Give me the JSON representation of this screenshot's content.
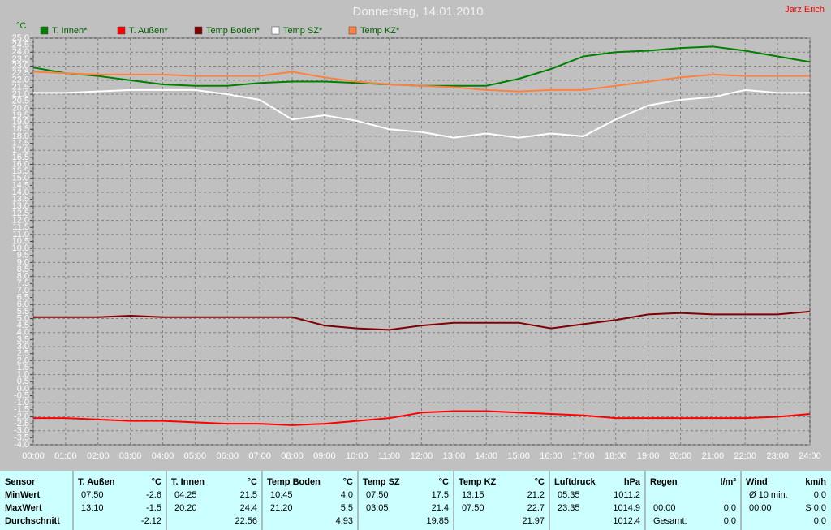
{
  "chart_data": {
    "type": "line",
    "title": "Donnerstag, 14.01.2010",
    "corner_text": "Jarz Erich",
    "y_label": "°C",
    "grid": true,
    "categories": [
      "00:00",
      "01:00",
      "02:00",
      "03:00",
      "04:00",
      "05:00",
      "06:00",
      "07:00",
      "08:00",
      "09:00",
      "10:00",
      "11:00",
      "12:00",
      "13:00",
      "14:00",
      "15:00",
      "16:00",
      "17:00",
      "18:00",
      "19:00",
      "20:00",
      "21:00",
      "22:00",
      "23:00",
      "24:00"
    ],
    "ylim": [
      -4,
      25
    ],
    "yticks": [
      {
        "value": -4,
        "label": "-4.0"
      },
      {
        "value": -3.5,
        "label": "-3.5"
      },
      {
        "value": -3,
        "label": "-3.0"
      },
      {
        "value": -2.5,
        "label": "-2.5"
      },
      {
        "value": -2,
        "label": "-2.0"
      },
      {
        "value": -1.5,
        "label": "-1.5"
      },
      {
        "value": -1,
        "label": "-1.0"
      },
      {
        "value": -0.5,
        "label": "-0.5"
      },
      {
        "value": 0,
        "label": "0.0"
      },
      {
        "value": 0.5,
        "label": "0.5"
      },
      {
        "value": 1,
        "label": "1.0"
      },
      {
        "value": 1.5,
        "label": "1.5"
      },
      {
        "value": 2,
        "label": "2.0"
      },
      {
        "value": 2.5,
        "label": "2.5"
      },
      {
        "value": 3,
        "label": "3.0"
      },
      {
        "value": 3.5,
        "label": "3.5"
      },
      {
        "value": 4,
        "label": "4.0"
      },
      {
        "value": 4.5,
        "label": "4.5"
      },
      {
        "value": 5,
        "label": "5.0"
      },
      {
        "value": 5.5,
        "label": "5.5"
      },
      {
        "value": 6,
        "label": "6.0"
      },
      {
        "value": 6.5,
        "label": "6.5"
      },
      {
        "value": 7,
        "label": "7.0"
      },
      {
        "value": 7.5,
        "label": "7.5"
      },
      {
        "value": 8,
        "label": "8.0"
      },
      {
        "value": 8.5,
        "label": "8.5"
      },
      {
        "value": 9,
        "label": "9.0"
      },
      {
        "value": 9.5,
        "label": "9.5"
      },
      {
        "value": 10,
        "label": "10.0"
      },
      {
        "value": 10.5,
        "label": "10.5"
      },
      {
        "value": 11,
        "label": "11.0"
      },
      {
        "value": 11.5,
        "label": "11.5"
      },
      {
        "value": 12,
        "label": "12.0"
      },
      {
        "value": 12.5,
        "label": "12.5"
      },
      {
        "value": 13,
        "label": "13.0"
      },
      {
        "value": 13.5,
        "label": "13.5"
      },
      {
        "value": 14,
        "label": "14.0"
      },
      {
        "value": 14.5,
        "label": "14.5"
      },
      {
        "value": 15,
        "label": "15.0"
      },
      {
        "value": 15.5,
        "label": "15.5"
      },
      {
        "value": 16,
        "label": "16.0"
      },
      {
        "value": 16.5,
        "label": "16.5"
      },
      {
        "value": 17,
        "label": "17.0"
      },
      {
        "value": 17.5,
        "label": "17.5"
      },
      {
        "value": 18,
        "label": "18.0"
      },
      {
        "value": 18.5,
        "label": "18.5"
      },
      {
        "value": 19,
        "label": "19.0"
      },
      {
        "value": 19.5,
        "label": "19.5"
      },
      {
        "value": 20,
        "label": "20.0"
      },
      {
        "value": 20.5,
        "label": "20.5"
      },
      {
        "value": 21,
        "label": "21.0"
      },
      {
        "value": 21.5,
        "label": "21.5"
      },
      {
        "value": 22,
        "label": "22.0"
      },
      {
        "value": 22.5,
        "label": "22.5"
      },
      {
        "value": 23,
        "label": "23.0"
      },
      {
        "value": 23.5,
        "label": "23.5"
      },
      {
        "value": 24,
        "label": "24.0"
      },
      {
        "value": 24.5,
        "label": "24.5"
      },
      {
        "value": 25,
        "label": "25.0"
      }
    ],
    "series": [
      {
        "name": "T. Innen*",
        "color": "#008000",
        "values": [
          22.9,
          22.5,
          22.3,
          22.0,
          21.7,
          21.6,
          21.6,
          21.8,
          21.9,
          21.9,
          21.8,
          21.7,
          21.6,
          21.6,
          21.6,
          22.1,
          22.8,
          23.7,
          24.0,
          24.1,
          24.3,
          24.4,
          24.1,
          23.7,
          23.3
        ]
      },
      {
        "name": "T. Außen*",
        "color": "#ff0000",
        "values": [
          -2.1,
          -2.1,
          -2.2,
          -2.3,
          -2.3,
          -2.4,
          -2.5,
          -2.5,
          -2.6,
          -2.5,
          -2.3,
          -2.1,
          -1.7,
          -1.6,
          -1.6,
          -1.7,
          -1.8,
          -1.9,
          -2.1,
          -2.1,
          -2.1,
          -2.1,
          -2.1,
          -2.0,
          -1.8
        ]
      },
      {
        "name": "Temp Boden*",
        "color": "#800000",
        "values": [
          5.1,
          5.1,
          5.1,
          5.2,
          5.1,
          5.1,
          5.1,
          5.1,
          5.1,
          4.5,
          4.3,
          4.2,
          4.5,
          4.7,
          4.7,
          4.7,
          4.3,
          4.6,
          4.9,
          5.3,
          5.4,
          5.3,
          5.3,
          5.3,
          5.5
        ]
      },
      {
        "name": "Temp SZ*",
        "color": "#ffffff",
        "values": [
          21.1,
          21.1,
          21.2,
          21.3,
          21.3,
          21.3,
          21.0,
          20.6,
          19.2,
          19.5,
          19.1,
          18.5,
          18.3,
          17.9,
          18.2,
          17.9,
          18.2,
          18.0,
          19.2,
          20.2,
          20.6,
          20.8,
          21.3,
          21.1,
          21.1
        ]
      },
      {
        "name": "Temp KZ*",
        "color": "#ff8040",
        "values": [
          22.6,
          22.5,
          22.4,
          22.4,
          22.4,
          22.3,
          22.3,
          22.3,
          22.6,
          22.2,
          21.9,
          21.7,
          21.6,
          21.5,
          21.3,
          21.2,
          21.3,
          21.3,
          21.6,
          21.9,
          22.2,
          22.4,
          22.3,
          22.3,
          22.3
        ]
      }
    ]
  },
  "table": {
    "columns": [
      {
        "name": "Sensor"
      },
      {
        "name": "T. Außen",
        "unit": "°C"
      },
      {
        "name": "T. Innen",
        "unit": "°C"
      },
      {
        "name": "Temp Boden",
        "unit": "°C"
      },
      {
        "name": "Temp SZ",
        "unit": "°C"
      },
      {
        "name": "Temp KZ",
        "unit": "°C"
      },
      {
        "name": "Luftdruck",
        "unit": "hPa"
      },
      {
        "name": "Regen",
        "unit": "l/m²"
      },
      {
        "name": "Wind",
        "unit": "km/h"
      }
    ],
    "rows": [
      {
        "label": "MinWert",
        "cells": [
          {
            "t": "07:50",
            "v": "-2.6"
          },
          {
            "t": "04:25",
            "v": "21.5"
          },
          {
            "t": "10:45",
            "v": "4.0"
          },
          {
            "t": "07:50",
            "v": "17.5"
          },
          {
            "t": "13:15",
            "v": "21.2"
          },
          {
            "t": "05:35",
            "v": "1011.2"
          },
          {},
          {
            "t": "Ø 10 min.",
            "v": "0.0"
          }
        ]
      },
      {
        "label": "MaxWert",
        "cells": [
          {
            "t": "13:10",
            "v": "-1.5"
          },
          {
            "t": "20:20",
            "v": "24.4"
          },
          {
            "t": "21:20",
            "v": "5.5"
          },
          {
            "t": "03:05",
            "v": "21.4"
          },
          {
            "t": "07:50",
            "v": "22.7"
          },
          {
            "t": "23:35",
            "v": "1014.9"
          },
          {
            "t": "00:00",
            "v": "0.0"
          },
          {
            "t": "00:00",
            "v": "S 0.0"
          }
        ]
      },
      {
        "label": "Durchschnitt",
        "cells": [
          {
            "v": "-2.12"
          },
          {
            "v": "22.56"
          },
          {
            "v": "4.93"
          },
          {
            "v": "19.85"
          },
          {
            "v": "21.97"
          },
          {
            "v": "1012.4"
          },
          {
            "t": "Gesamt:",
            "v": "0.0"
          },
          {
            "v": "0.0"
          }
        ]
      }
    ]
  }
}
